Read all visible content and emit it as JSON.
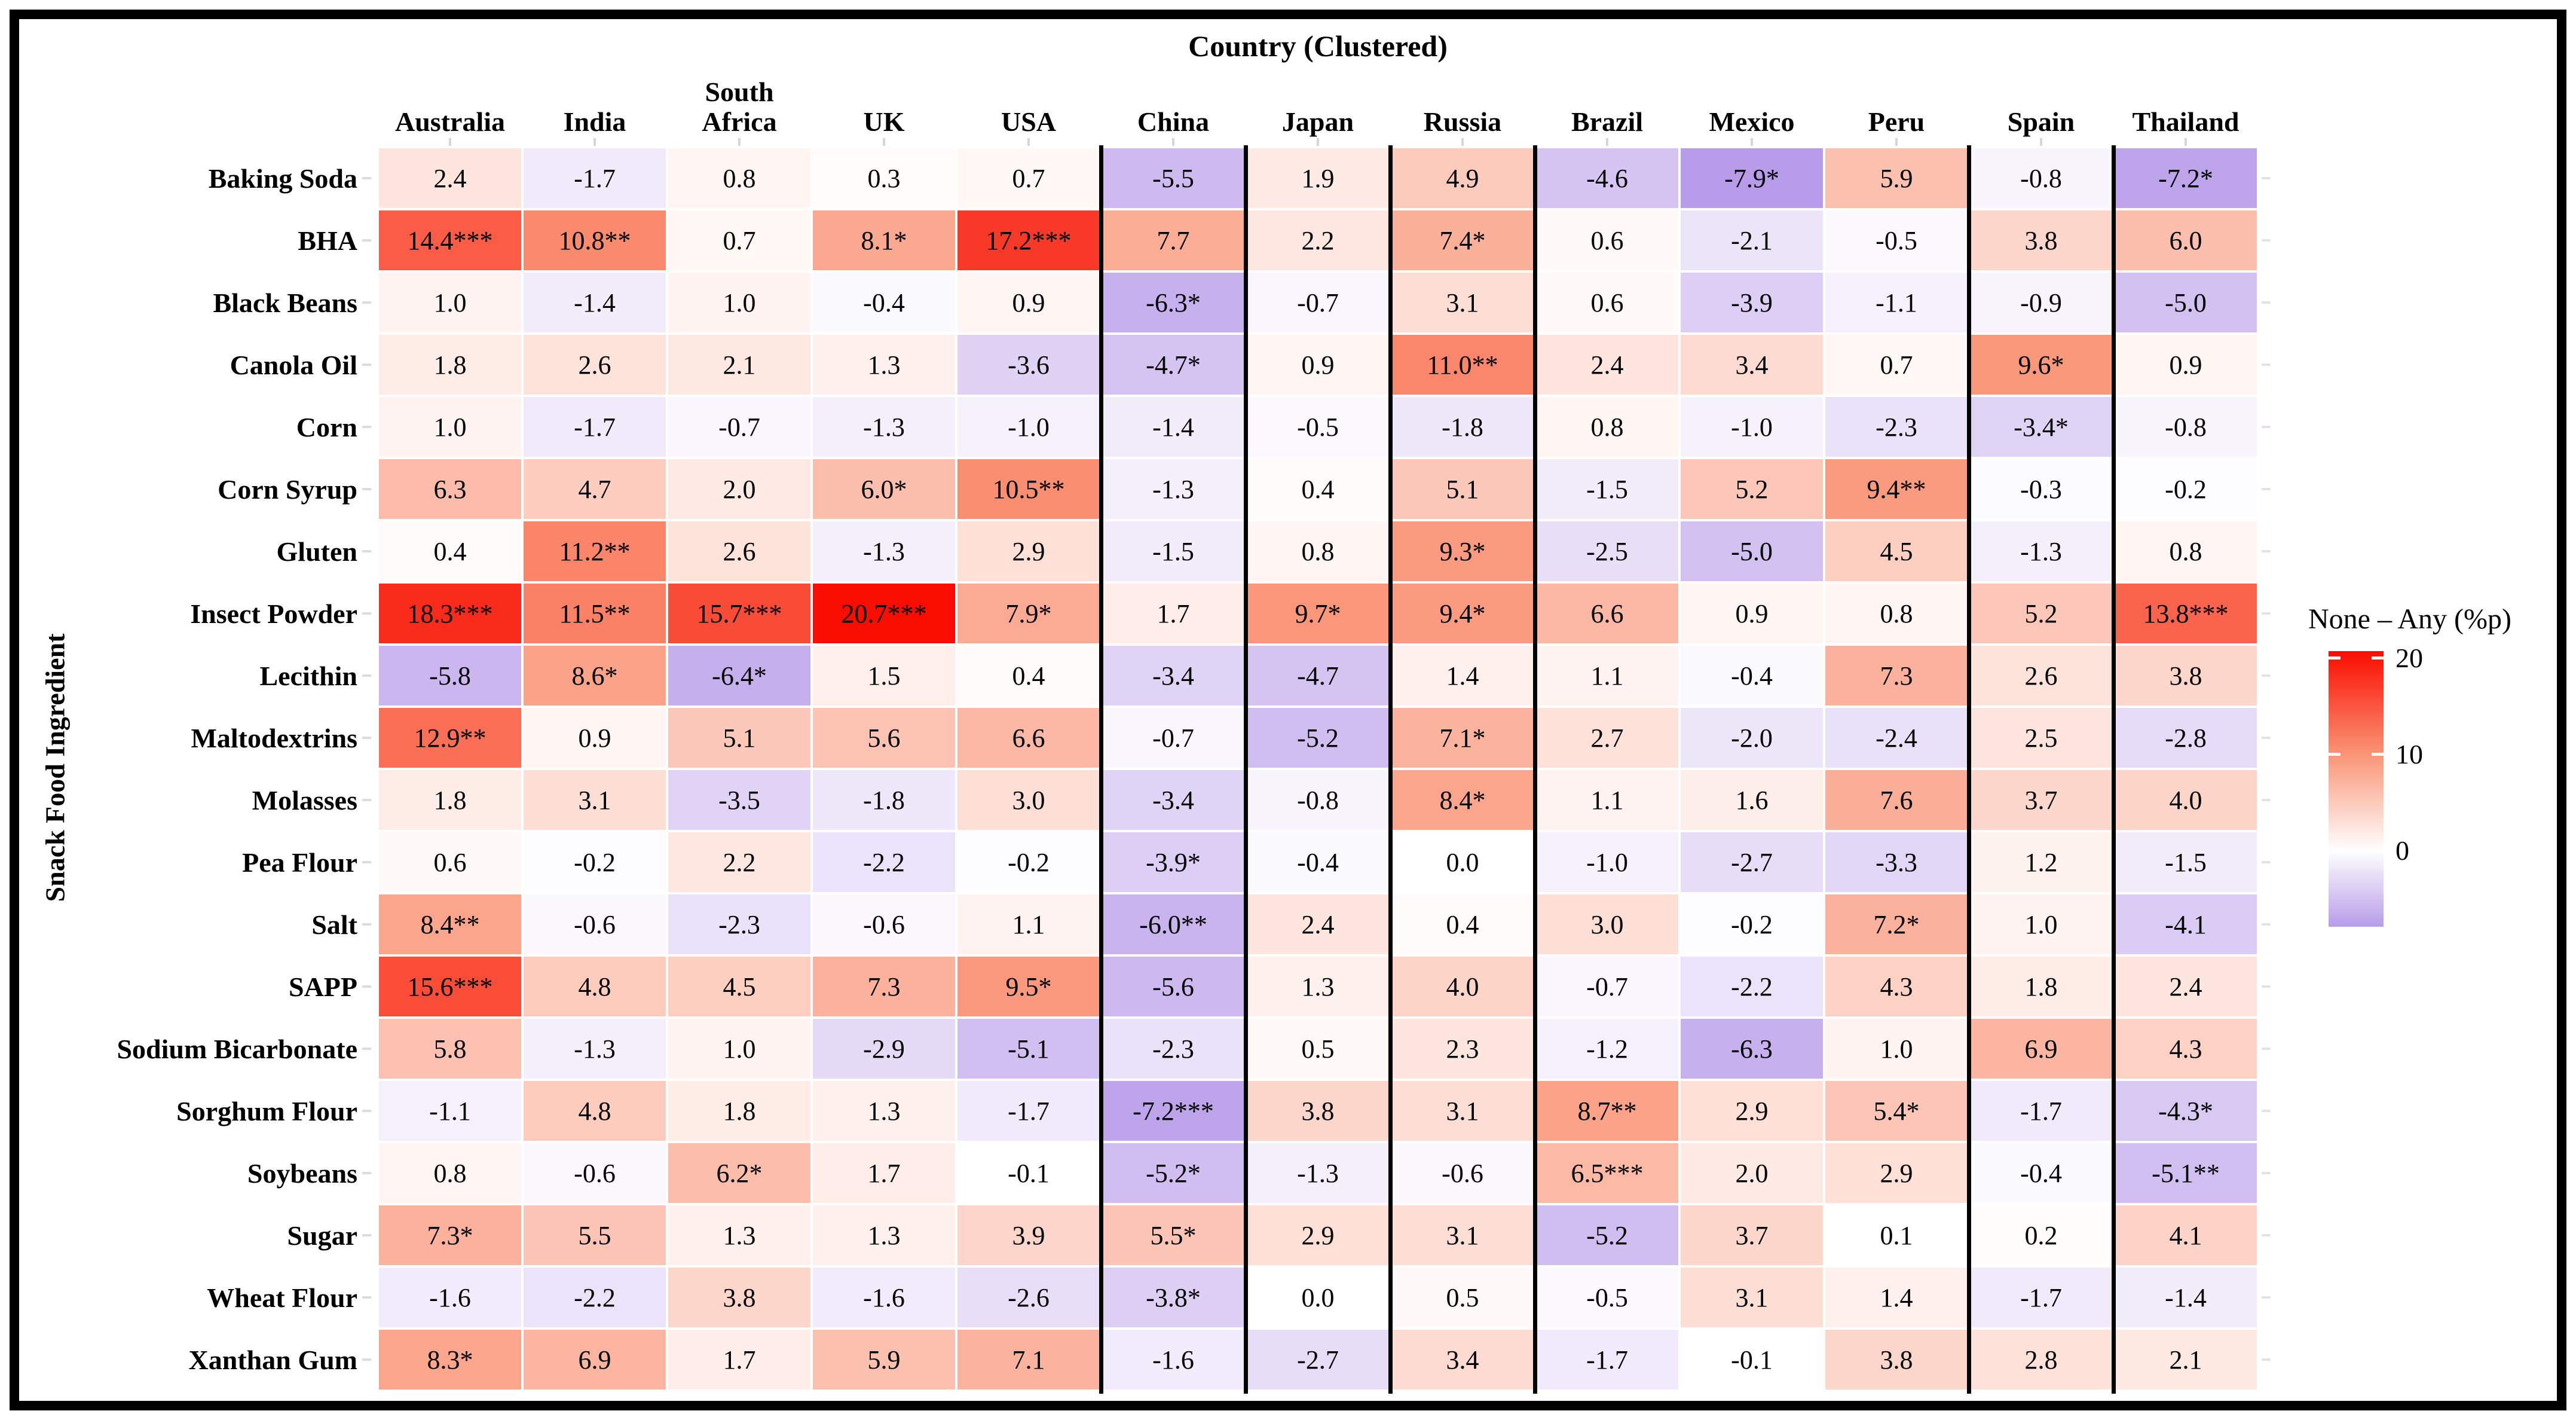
{
  "chart_data": {
    "type": "heatmap",
    "title": "Country (Clustered)",
    "xlabel": "Country (Clustered)",
    "ylabel": "Snack Food Ingredient",
    "columns": [
      "Australia",
      "India",
      "South\nAfrica",
      "UK",
      "USA",
      "China",
      "Japan",
      "Russia",
      "Brazil",
      "Mexico",
      "Peru",
      "Spain",
      "Thailand"
    ],
    "rows": [
      "Baking Soda",
      "BHA",
      "Black Beans",
      "Canola Oil",
      "Corn",
      "Corn Syrup",
      "Gluten",
      "Insect Powder",
      "Lecithin",
      "Maltodextrins",
      "Molasses",
      "Pea Flour",
      "Salt",
      "SAPP",
      "Sodium Bicarbonate",
      "Sorghum Flour",
      "Soybeans",
      "Sugar",
      "Wheat Flour",
      "Xanthan Gum"
    ],
    "values": [
      [
        "2.4",
        "-1.7",
        "0.8",
        "0.3",
        "0.7",
        "-5.5",
        "1.9",
        "4.9",
        "-4.6",
        "-7.9*",
        "5.9",
        "-0.8",
        "-7.2*"
      ],
      [
        "14.4***",
        "10.8**",
        "0.7",
        "8.1*",
        "17.2***",
        "7.7",
        "2.2",
        "7.4*",
        "0.6",
        "-2.1",
        "-0.5",
        "3.8",
        "6.0"
      ],
      [
        "1.0",
        "-1.4",
        "1.0",
        "-0.4",
        "0.9",
        "-6.3*",
        "-0.7",
        "3.1",
        "0.6",
        "-3.9",
        "-1.1",
        "-0.9",
        "-5.0"
      ],
      [
        "1.8",
        "2.6",
        "2.1",
        "1.3",
        "-3.6",
        "-4.7*",
        "0.9",
        "11.0**",
        "2.4",
        "3.4",
        "0.7",
        "9.6*",
        "0.9"
      ],
      [
        "1.0",
        "-1.7",
        "-0.7",
        "-1.3",
        "-1.0",
        "-1.4",
        "-0.5",
        "-1.8",
        "0.8",
        "-1.0",
        "-2.3",
        "-3.4*",
        "-0.8"
      ],
      [
        "6.3",
        "4.7",
        "2.0",
        "6.0*",
        "10.5**",
        "-1.3",
        "0.4",
        "5.1",
        "-1.5",
        "5.2",
        "9.4**",
        "-0.3",
        "-0.2"
      ],
      [
        "0.4",
        "11.2**",
        "2.6",
        "-1.3",
        "2.9",
        "-1.5",
        "0.8",
        "9.3*",
        "-2.5",
        "-5.0",
        "4.5",
        "-1.3",
        "0.8"
      ],
      [
        "18.3***",
        "11.5**",
        "15.7***",
        "20.7***",
        "7.9*",
        "1.7",
        "9.7*",
        "9.4*",
        "6.6",
        "0.9",
        "0.8",
        "5.2",
        "13.8***"
      ],
      [
        "-5.8",
        "8.6*",
        "-6.4*",
        "1.5",
        "0.4",
        "-3.4",
        "-4.7",
        "1.4",
        "1.1",
        "-0.4",
        "7.3",
        "2.6",
        "3.8"
      ],
      [
        "12.9**",
        "0.9",
        "5.1",
        "5.6",
        "6.6",
        "-0.7",
        "-5.2",
        "7.1*",
        "2.7",
        "-2.0",
        "-2.4",
        "2.5",
        "-2.8"
      ],
      [
        "1.8",
        "3.1",
        "-3.5",
        "-1.8",
        "3.0",
        "-3.4",
        "-0.8",
        "8.4*",
        "1.1",
        "1.6",
        "7.6",
        "3.7",
        "4.0"
      ],
      [
        "0.6",
        "-0.2",
        "2.2",
        "-2.2",
        "-0.2",
        "-3.9*",
        "-0.4",
        "0.0",
        "-1.0",
        "-2.7",
        "-3.3",
        "1.2",
        "-1.5"
      ],
      [
        "8.4**",
        "-0.6",
        "-2.3",
        "-0.6",
        "1.1",
        "-6.0**",
        "2.4",
        "0.4",
        "3.0",
        "-0.2",
        "7.2*",
        "1.0",
        "-4.1"
      ],
      [
        "15.6***",
        "4.8",
        "4.5",
        "7.3",
        "9.5*",
        "-5.6",
        "1.3",
        "4.0",
        "-0.7",
        "-2.2",
        "4.3",
        "1.8",
        "2.4"
      ],
      [
        "5.8",
        "-1.3",
        "1.0",
        "-2.9",
        "-5.1",
        "-2.3",
        "0.5",
        "2.3",
        "-1.2",
        "-6.3",
        "1.0",
        "6.9",
        "4.3"
      ],
      [
        "-1.1",
        "4.8",
        "1.8",
        "1.3",
        "-1.7",
        "-7.2***",
        "3.8",
        "3.1",
        "8.7**",
        "2.9",
        "5.4*",
        "-1.7",
        "-4.3*"
      ],
      [
        "0.8",
        "-0.6",
        "6.2*",
        "1.7",
        "-0.1",
        "-5.2*",
        "-1.3",
        "-0.6",
        "6.5***",
        "2.0",
        "2.9",
        "-0.4",
        "-5.1**"
      ],
      [
        "7.3*",
        "5.5",
        "1.3",
        "1.3",
        "3.9",
        "5.5*",
        "2.9",
        "3.1",
        "-5.2",
        "3.7",
        "0.1",
        "0.2",
        "4.1"
      ],
      [
        "-1.6",
        "-2.2",
        "3.8",
        "-1.6",
        "-2.6",
        "-3.8*",
        "0.0",
        "0.5",
        "-0.5",
        "3.1",
        "1.4",
        "-1.7",
        "-1.4"
      ],
      [
        "8.3*",
        "6.9",
        "1.7",
        "5.9",
        "7.1",
        "-1.6",
        "-2.7",
        "3.4",
        "-1.7",
        "-0.1",
        "3.8",
        "2.8",
        "2.1"
      ]
    ],
    "cluster_separators_after_columns": [
      "USA",
      "China",
      "Japan",
      "Russia",
      "Peru",
      "Spain"
    ],
    "legend": {
      "title": "None – Any (%p)",
      "ticks": [
        20,
        10,
        0
      ]
    },
    "colorscale": {
      "max_value": 20.7,
      "mid_value": 10,
      "min_value": -7.9,
      "max_color": "#F90D00",
      "mid_color": "#FA9476",
      "zero_color": "#FFFFFF",
      "min_color": "#B89CE9"
    },
    "grid": false,
    "legend_position": "right"
  }
}
